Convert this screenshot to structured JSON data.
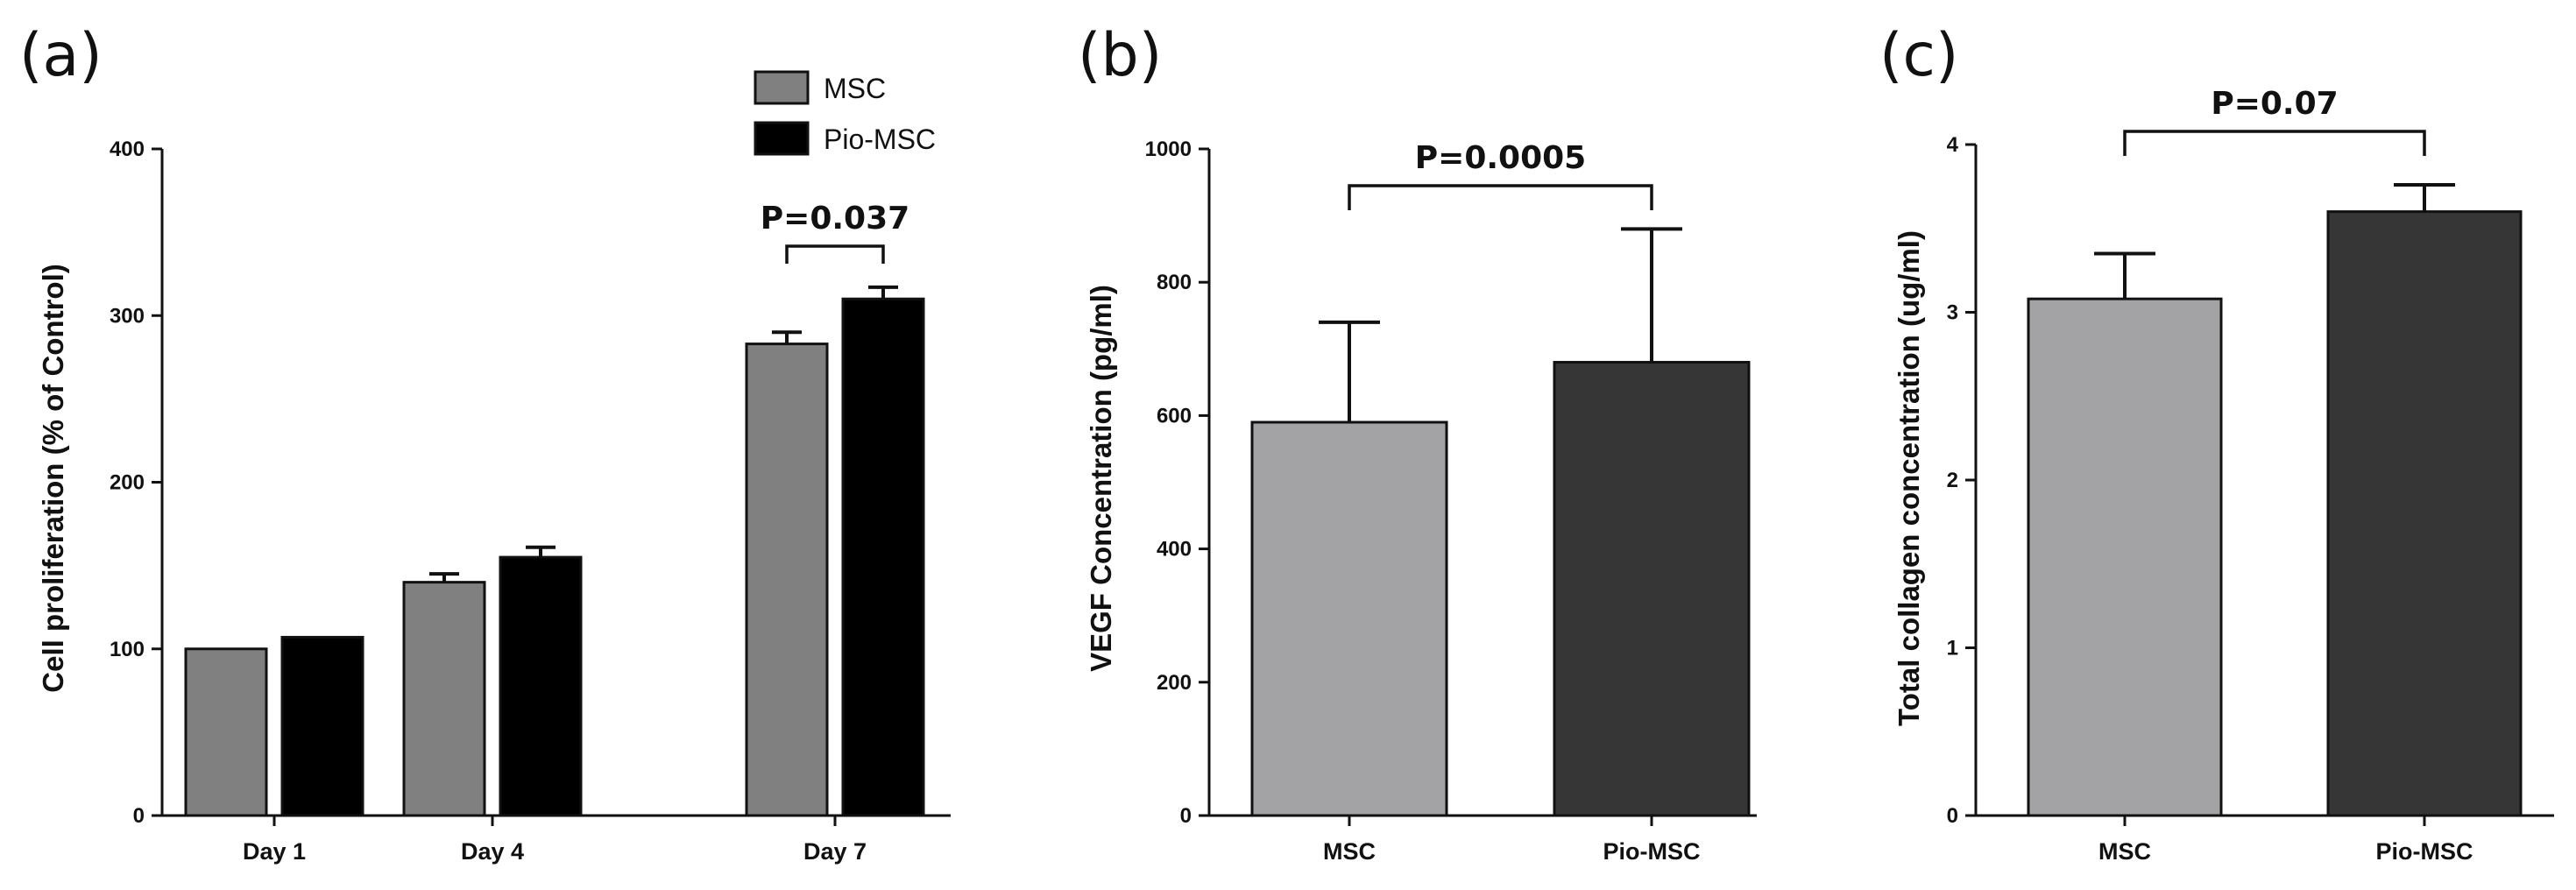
{
  "chart_data": [
    {
      "panel": "(a)",
      "type": "bar",
      "title": "",
      "xlabel": "",
      "ylabel": "Cell proliferation (% of Control)",
      "ylim": [
        0,
        400
      ],
      "yticks": [
        0,
        100,
        200,
        300,
        400
      ],
      "categories": [
        "Day 1",
        "Day 4",
        "Day 7"
      ],
      "series": [
        {
          "name": "MSC",
          "color": "#808080",
          "values": [
            100,
            140,
            283
          ],
          "errors": [
            0,
            5,
            7
          ]
        },
        {
          "name": "Pio-MSC",
          "color": "#000000",
          "values": [
            107,
            155,
            310
          ],
          "errors": [
            0,
            6,
            7
          ]
        }
      ],
      "legend": "top-right",
      "annotations": [
        {
          "text": "P=0.037",
          "between": [
            "Day 7 MSC",
            "Day 7 Pio-MSC"
          ]
        }
      ]
    },
    {
      "panel": "(b)",
      "type": "bar",
      "title": "",
      "xlabel": "",
      "ylabel": "VEGF Concentration (pg/ml)",
      "ylim": [
        0,
        1000
      ],
      "yticks": [
        0,
        200,
        400,
        600,
        800,
        1000
      ],
      "categories": [
        "MSC",
        "Pio-MSC"
      ],
      "values": [
        590,
        680
      ],
      "errors": [
        150,
        200
      ],
      "colors": [
        "#a3a3a6",
        "#363636"
      ],
      "annotations": [
        {
          "text": "P=0.0005",
          "between": [
            "MSC",
            "Pio-MSC"
          ]
        }
      ]
    },
    {
      "panel": "(c)",
      "type": "bar",
      "title": "",
      "xlabel": "",
      "ylabel": "Total collagen concentration (ug/ml)",
      "ylim": [
        0,
        4
      ],
      "yticks": [
        0,
        1,
        2,
        3,
        4
      ],
      "categories": [
        "MSC",
        "Pio-MSC"
      ],
      "values": [
        3.08,
        3.6
      ],
      "errors": [
        0.27,
        0.16
      ],
      "colors": [
        "#a3a3a6",
        "#363636"
      ],
      "annotations": [
        {
          "text": "P=0.07",
          "between": [
            "MSC",
            "Pio-MSC"
          ]
        }
      ]
    }
  ]
}
